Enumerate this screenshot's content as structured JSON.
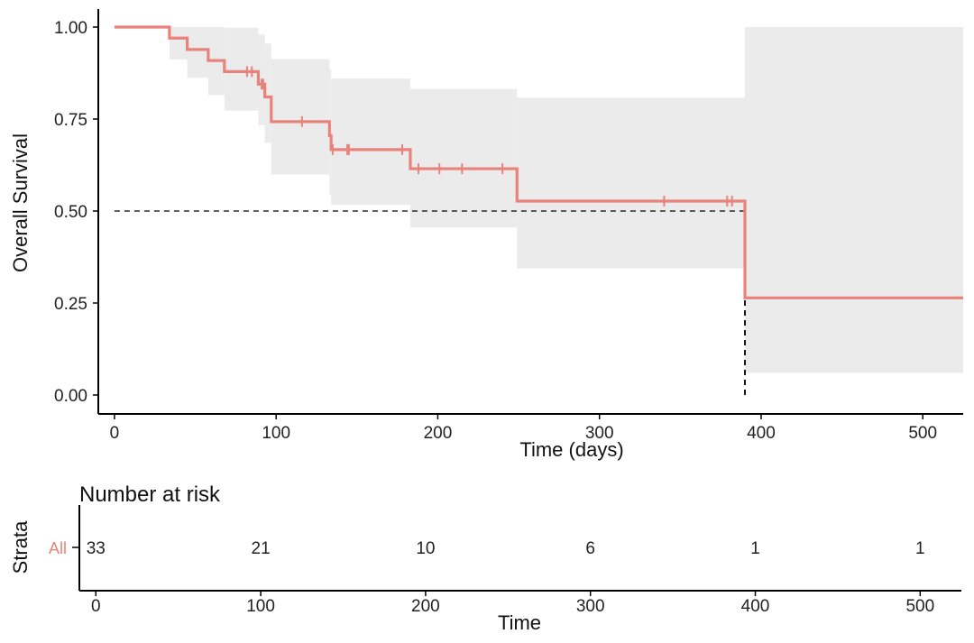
{
  "chart_data": [
    {
      "type": "line",
      "subtype": "kaplan-meier",
      "xlabel": "Time (days)",
      "ylabel": "Overall Survival",
      "xlim": [
        -10,
        525
      ],
      "ylim": [
        0,
        1
      ],
      "xticks": [
        "0",
        "100",
        "200",
        "300",
        "400",
        "500"
      ],
      "yticks": [
        "0.00",
        "0.25",
        "0.50",
        "0.75",
        "1.00"
      ],
      "grid": false,
      "color": "#E8827A",
      "ci_color": "#EBEBEB",
      "median_line": {
        "y": 0.5,
        "x": 390
      },
      "steps": [
        [
          0,
          1.0
        ],
        [
          34,
          0.97
        ],
        [
          45,
          0.939
        ],
        [
          58,
          0.909
        ],
        [
          68,
          0.879
        ],
        [
          89,
          0.845
        ],
        [
          93,
          0.81
        ],
        [
          97,
          0.743
        ],
        [
          133,
          0.705
        ],
        [
          134,
          0.667
        ],
        [
          183,
          0.615
        ],
        [
          249,
          0.527
        ],
        [
          390,
          0.264
        ],
        [
          525,
          0.264
        ]
      ],
      "ci": [
        {
          "x": [
            0,
            34
          ],
          "lo": 1.0,
          "hi": 1.0
        },
        {
          "x": [
            34,
            45
          ],
          "lo": 0.912,
          "hi": 1.0
        },
        {
          "x": [
            45,
            58
          ],
          "lo": 0.862,
          "hi": 1.0
        },
        {
          "x": [
            58,
            68
          ],
          "lo": 0.815,
          "hi": 1.0
        },
        {
          "x": [
            68,
            89
          ],
          "lo": 0.773,
          "hi": 0.998
        },
        {
          "x": [
            89,
            93
          ],
          "lo": 0.733,
          "hi": 0.98
        },
        {
          "x": [
            93,
            97
          ],
          "lo": 0.685,
          "hi": 0.955
        },
        {
          "x": [
            97,
            133
          ],
          "lo": 0.599,
          "hi": 0.913
        },
        {
          "x": [
            133,
            134
          ],
          "lo": 0.545,
          "hi": 0.885
        },
        {
          "x": [
            134,
            183
          ],
          "lo": 0.517,
          "hi": 0.86
        },
        {
          "x": [
            183,
            249
          ],
          "lo": 0.455,
          "hi": 0.832
        },
        {
          "x": [
            249,
            390
          ],
          "lo": 0.344,
          "hi": 0.808
        },
        {
          "x": [
            390,
            525
          ],
          "lo": 0.06,
          "hi": 1.0
        }
      ],
      "censor": [
        [
          82,
          0.879
        ],
        [
          85,
          0.879
        ],
        [
          91,
          0.845
        ],
        [
          92,
          0.845
        ],
        [
          116,
          0.743
        ],
        [
          134,
          0.69
        ],
        [
          135,
          0.667
        ],
        [
          144,
          0.667
        ],
        [
          145,
          0.667
        ],
        [
          178,
          0.667
        ],
        [
          188,
          0.615
        ],
        [
          201,
          0.615
        ],
        [
          215,
          0.615
        ],
        [
          240,
          0.615
        ],
        [
          340,
          0.527
        ],
        [
          379,
          0.527
        ],
        [
          382,
          0.527
        ]
      ]
    },
    {
      "type": "table",
      "title": "Number at risk",
      "xlabel": "Time",
      "ylabel": "Strata",
      "strata": "All",
      "strata_color": "#E8827A",
      "xlim": [
        -10,
        525
      ],
      "xticks": [
        "0",
        "100",
        "200",
        "300",
        "400",
        "500"
      ],
      "times": [
        0,
        100,
        200,
        300,
        400,
        500
      ],
      "values": [
        "33",
        "21",
        "10",
        "6",
        "1",
        "1"
      ]
    }
  ]
}
